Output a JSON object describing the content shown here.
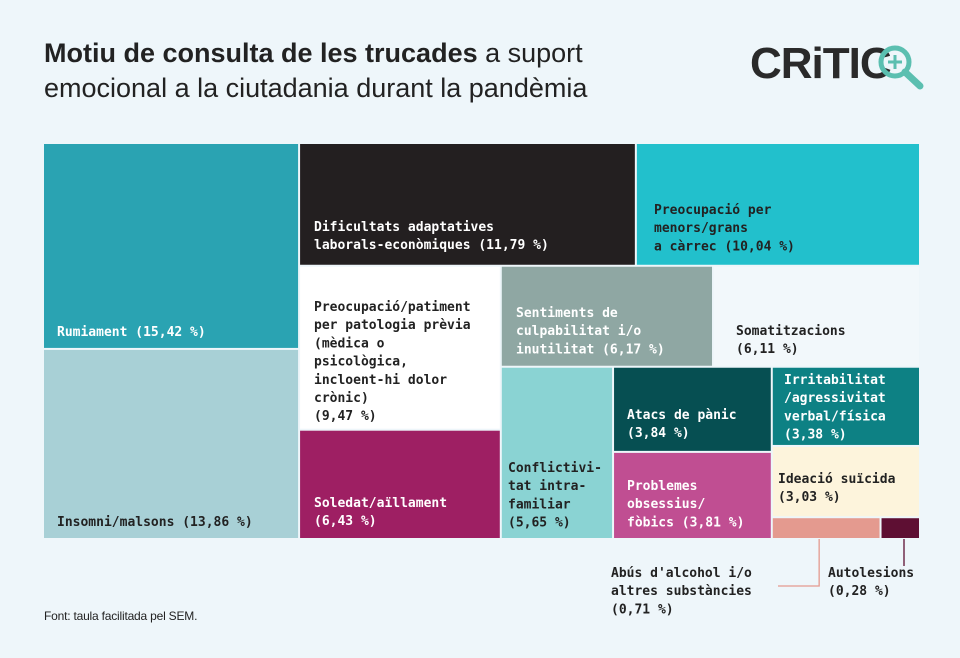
{
  "title": {
    "bold": "Motiu de consulta de les trucades",
    "normal": " a suport emocional a la ciutadania durant la pandèmia"
  },
  "logo": {
    "text": "CRiTIC"
  },
  "source": "Font: taula facilitada pel SEM.",
  "chart_data": {
    "type": "treemap",
    "unit": "%",
    "items": [
      {
        "name": "Rumiament",
        "value": 15.42,
        "label": [
          "Rumiament (15,42 %)"
        ],
        "color": "#2aa3b2",
        "text_color": "#ffffff"
      },
      {
        "name": "Insomni/malsons",
        "value": 13.86,
        "label": [
          "Insomni/malsons (13,86 %)"
        ],
        "color": "#a8d0d6",
        "text_color": "#222222"
      },
      {
        "name": "Dificultats adaptatives laborals-econòmiques",
        "value": 11.79,
        "label": [
          "Dificultats adaptatives",
          "laborals-econòmiques (11,79 %)"
        ],
        "color": "#231f20",
        "text_color": "#ffffff"
      },
      {
        "name": "Preocupació per menors/grans a càrrec",
        "value": 10.04,
        "label": [
          "Preocupació per",
          "menors/grans",
          "a càrrec (10,04 %)"
        ],
        "color": "#22c0cc",
        "text_color": "#222222"
      },
      {
        "name": "Preocupació/patiment per patologia prèvia",
        "value": 9.47,
        "label": [
          "Preocupació/patiment",
          "per patologia prèvia",
          "(mèdica o",
          "psicològica,",
          "incloent-hi dolor",
          "crònic)",
          "(9,47 %)"
        ],
        "color": "#ffffff",
        "text_color": "#222222"
      },
      {
        "name": "Soledat/aïllament",
        "value": 6.43,
        "label": [
          "Soledat/aïllament",
          "(6,43 %)"
        ],
        "color": "#9e1f63",
        "text_color": "#ffffff"
      },
      {
        "name": "Sentiments de culpabilitat i/o inutilitat",
        "value": 6.17,
        "label": [
          "Sentiments de",
          "culpabilitat i/o",
          "inutilitat (6,17 %)"
        ],
        "color": "#8fa7a3",
        "text_color": "#ffffff"
      },
      {
        "name": "Somatitzacions",
        "value": 6.11,
        "label": [
          "Somatitzacions",
          "(6,11 %)"
        ],
        "color": "#f2f8fb",
        "text_color": "#222222"
      },
      {
        "name": "Conflictivitat intrafamiliar",
        "value": 5.65,
        "label": [
          "Conflictivi-",
          "tat intra-",
          "familiar",
          "(5,65 %)"
        ],
        "color": "#8ad3d3",
        "text_color": "#222222"
      },
      {
        "name": "Atacs de pànic",
        "value": 3.84,
        "label": [
          "Atacs de pànic",
          "(3,84 %)"
        ],
        "color": "#064f52",
        "text_color": "#ffffff"
      },
      {
        "name": "Problemes obsessius/fòbics",
        "value": 3.81,
        "label": [
          "Problemes",
          "obsessius/",
          "fòbics (3,81 %)"
        ],
        "color": "#c04e92",
        "text_color": "#ffffff"
      },
      {
        "name": "Irritabilitat/agressivitat verbal/física",
        "value": 3.38,
        "label": [
          "Irritabilitat",
          "/agressivitat",
          "verbal/física",
          "(3,38 %)"
        ],
        "color": "#0d8184",
        "text_color": "#ffffff"
      },
      {
        "name": "Ideació suïcida",
        "value": 3.03,
        "label": [
          "Ideació suïcida",
          "(3,03 %)"
        ],
        "color": "#fdf4dc",
        "text_color": "#222222"
      },
      {
        "name": "Abús d'alcohol i/o altres substàncies",
        "value": 0.71,
        "label": [
          "Abús d'alcohol i/o",
          "altres substàncies",
          "(0,71 %)"
        ],
        "color": "#e49a8f",
        "text_color": "#222222"
      },
      {
        "name": "Autolesions",
        "value": 0.28,
        "label": [
          "Autolesions",
          "(0,28 %)"
        ],
        "color": "#5e0f33",
        "text_color": "#222222"
      }
    ]
  }
}
